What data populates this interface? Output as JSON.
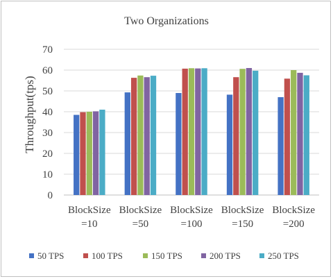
{
  "chart_data": {
    "type": "bar",
    "title": "Two Organizations",
    "xlabel": "",
    "ylabel": "Throughput(tps)",
    "ylim": [
      0,
      70
    ],
    "yticks": [
      0,
      10,
      20,
      30,
      40,
      50,
      60,
      70
    ],
    "grid": true,
    "legend_position": "bottom",
    "categories": [
      [
        "BlockSize",
        "=10"
      ],
      [
        "BlockSize",
        "=50"
      ],
      [
        "BlockSize",
        "=100"
      ],
      [
        "BlockSize",
        "=150"
      ],
      [
        "BlockSize",
        "=200"
      ]
    ],
    "series": [
      {
        "name": "50 TPS",
        "color": "#4472c4",
        "values": [
          38.5,
          49.3,
          49.0,
          48.2,
          47.0
        ]
      },
      {
        "name": "100 TPS",
        "color": "#c0504d",
        "values": [
          39.8,
          56.3,
          60.7,
          56.6,
          55.9
        ]
      },
      {
        "name": "150 TPS",
        "color": "#9bbb59",
        "values": [
          40.0,
          57.4,
          60.9,
          60.6,
          60.0
        ]
      },
      {
        "name": "200 TPS",
        "color": "#8064a2",
        "values": [
          40.2,
          56.6,
          60.8,
          61.0,
          58.7
        ]
      },
      {
        "name": "250 TPS",
        "color": "#4bacc6",
        "values": [
          41.0,
          57.3,
          60.9,
          59.7,
          57.5
        ]
      }
    ]
  }
}
